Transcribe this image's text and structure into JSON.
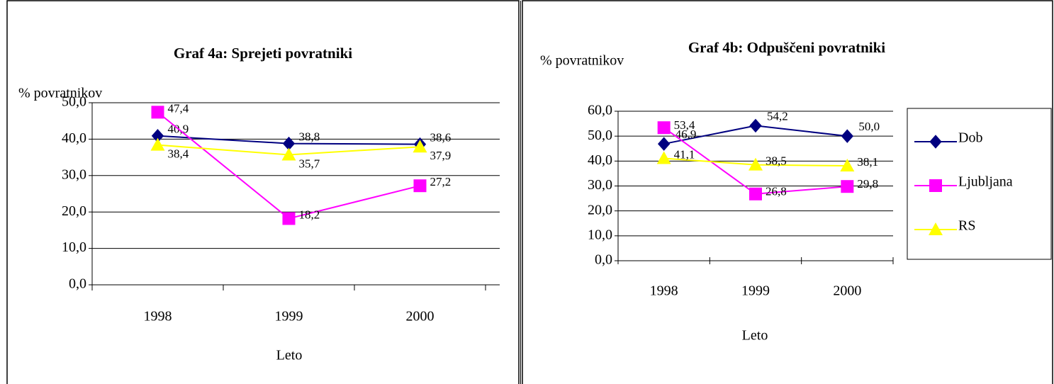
{
  "chart_data": [
    {
      "type": "line",
      "title": "Graf 4a: Sprejeti povratniki",
      "y_label": "% povratnikov",
      "x_label": "Leto",
      "categories": [
        "1998",
        "1999",
        "2000"
      ],
      "series": [
        {
          "name": "Dob",
          "color": "#000080",
          "values": [
            40.9,
            38.8,
            38.6
          ],
          "value_labels": [
            "40,9",
            "38,8",
            "38,6"
          ]
        },
        {
          "name": "Ljubljana",
          "color": "#ff00ff",
          "values": [
            47.4,
            18.2,
            27.2
          ],
          "value_labels": [
            "47,4",
            "18,2",
            "27,2"
          ]
        },
        {
          "name": "RS",
          "color": "#ffff00",
          "values": [
            38.4,
            35.7,
            37.9
          ],
          "value_labels": [
            "38,4",
            "35,7",
            "37,9"
          ]
        }
      ],
      "ylim": [
        0,
        50
      ],
      "yticks": [
        {
          "value": 0,
          "label": "0,0"
        },
        {
          "value": 10,
          "label": "10,0"
        },
        {
          "value": 20,
          "label": "20,0"
        },
        {
          "value": 30,
          "label": "30,0"
        },
        {
          "value": 40,
          "label": "40,0"
        },
        {
          "value": 50,
          "label": "50,0"
        }
      ],
      "grid": true,
      "legend": false
    },
    {
      "type": "line",
      "title": "Graf 4b: Odpuščeni povratniki",
      "y_label": "% povratnikov",
      "x_label": "Leto",
      "categories": [
        "1998",
        "1999",
        "2000"
      ],
      "series": [
        {
          "name": "Dob",
          "color": "#000080",
          "values": [
            46.9,
            54.2,
            50.0
          ],
          "value_labels": [
            "46,9",
            "54,2",
            "50,0"
          ]
        },
        {
          "name": "Ljubljana",
          "color": "#ff00ff",
          "values": [
            53.4,
            26.8,
            29.8
          ],
          "value_labels": [
            "53,4",
            "26,8",
            "29,8"
          ]
        },
        {
          "name": "RS",
          "color": "#ffff00",
          "values": [
            41.1,
            38.5,
            38.1
          ],
          "value_labels": [
            "41,1",
            "38,5",
            "38,1"
          ]
        }
      ],
      "ylim": [
        0,
        60
      ],
      "yticks": [
        {
          "value": 0,
          "label": "0,0"
        },
        {
          "value": 10,
          "label": "10,0"
        },
        {
          "value": 20,
          "label": "20,0"
        },
        {
          "value": 30,
          "label": "30,0"
        },
        {
          "value": 40,
          "label": "40,0"
        },
        {
          "value": 50,
          "label": "50,0"
        },
        {
          "value": 60,
          "label": "60,0"
        }
      ],
      "grid": true,
      "legend": "right"
    }
  ]
}
